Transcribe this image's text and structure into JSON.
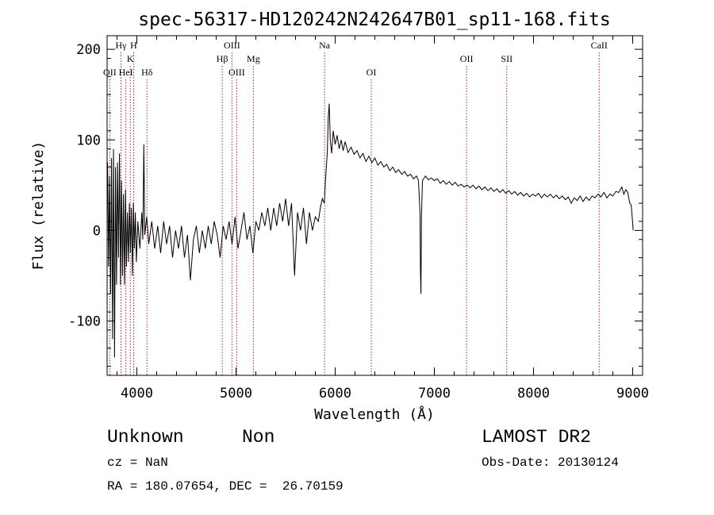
{
  "chart_data": {
    "type": "line",
    "title": "spec-56317-HD120242N242647B01_sp11-168.fits",
    "xlabel": "Wavelength (Å)",
    "ylabel": "Flux (relative)",
    "xlim": [
      3700,
      9100
    ],
    "ylim": [
      -160,
      215
    ],
    "xticks": [
      4000,
      5000,
      6000,
      7000,
      8000,
      9000
    ],
    "yticks": [
      -100,
      0,
      100,
      200
    ],
    "grid": false,
    "line_color": "#000000",
    "marker_color": "#b22222",
    "spectral_lines": [
      {
        "label": "Hγ",
        "wavelength": 3840,
        "row": 1
      },
      {
        "label": "H",
        "wavelength": 3968,
        "row": 1
      },
      {
        "label": "K",
        "wavelength": 3934,
        "row": 2
      },
      {
        "label": "OII",
        "wavelength": 3727,
        "row": 3
      },
      {
        "label": "HeI",
        "wavelength": 3889,
        "row": 3
      },
      {
        "label": "Hδ",
        "wavelength": 4102,
        "row": 3
      },
      {
        "label": "OIII",
        "wavelength": 4959,
        "row": 1
      },
      {
        "label": "Hβ",
        "wavelength": 4861,
        "row": 2
      },
      {
        "label": "Mg",
        "wavelength": 5175,
        "row": 2
      },
      {
        "label": "OIII",
        "wavelength": 5007,
        "row": 3
      },
      {
        "label": "Na",
        "wavelength": 5893,
        "row": 1
      },
      {
        "label": "OI",
        "wavelength": 6364,
        "row": 3
      },
      {
        "label": "OII",
        "wavelength": 7325,
        "row": 2
      },
      {
        "label": "SII",
        "wavelength": 7730,
        "row": 2
      },
      {
        "label": "CaII",
        "wavelength": 8662,
        "row": 1
      }
    ],
    "series": [
      {
        "points": [
          [
            3705,
            75
          ],
          [
            3715,
            -40
          ],
          [
            3725,
            60
          ],
          [
            3735,
            -70
          ],
          [
            3745,
            80
          ],
          [
            3755,
            -120
          ],
          [
            3765,
            90
          ],
          [
            3775,
            -140
          ],
          [
            3785,
            70
          ],
          [
            3795,
            -60
          ],
          [
            3805,
            75
          ],
          [
            3815,
            -30
          ],
          [
            3825,
            85
          ],
          [
            3835,
            -60
          ],
          [
            3845,
            55
          ],
          [
            3855,
            -50
          ],
          [
            3865,
            40
          ],
          [
            3875,
            -60
          ],
          [
            3885,
            45
          ],
          [
            3895,
            -40
          ],
          [
            3905,
            20
          ],
          [
            3915,
            -35
          ],
          [
            3925,
            30
          ],
          [
            3935,
            -25
          ],
          [
            3945,
            25
          ],
          [
            3955,
            -50
          ],
          [
            3965,
            30
          ],
          [
            3975,
            -20
          ],
          [
            3985,
            20
          ],
          [
            3995,
            -35
          ],
          [
            4010,
            10
          ],
          [
            4030,
            -20
          ],
          [
            4050,
            20
          ],
          [
            4060,
            -10
          ],
          [
            4070,
            95
          ],
          [
            4080,
            -5
          ],
          [
            4100,
            15
          ],
          [
            4120,
            -15
          ],
          [
            4150,
            10
          ],
          [
            4180,
            -20
          ],
          [
            4210,
            5
          ],
          [
            4240,
            -25
          ],
          [
            4270,
            10
          ],
          [
            4300,
            -15
          ],
          [
            4330,
            5
          ],
          [
            4360,
            -30
          ],
          [
            4390,
            0
          ],
          [
            4420,
            -20
          ],
          [
            4450,
            5
          ],
          [
            4480,
            -30
          ],
          [
            4510,
            -5
          ],
          [
            4540,
            -55
          ],
          [
            4570,
            -10
          ],
          [
            4600,
            5
          ],
          [
            4630,
            -25
          ],
          [
            4660,
            0
          ],
          [
            4690,
            -20
          ],
          [
            4720,
            5
          ],
          [
            4750,
            -15
          ],
          [
            4780,
            10
          ],
          [
            4810,
            -5
          ],
          [
            4840,
            -30
          ],
          [
            4870,
            5
          ],
          [
            4900,
            -10
          ],
          [
            4930,
            10
          ],
          [
            4960,
            -15
          ],
          [
            4990,
            15
          ],
          [
            5020,
            -20
          ],
          [
            5050,
            0
          ],
          [
            5080,
            20
          ],
          [
            5110,
            -10
          ],
          [
            5140,
            5
          ],
          [
            5170,
            -25
          ],
          [
            5200,
            10
          ],
          [
            5230,
            0
          ],
          [
            5260,
            20
          ],
          [
            5290,
            5
          ],
          [
            5320,
            25
          ],
          [
            5350,
            0
          ],
          [
            5380,
            25
          ],
          [
            5410,
            5
          ],
          [
            5440,
            30
          ],
          [
            5470,
            10
          ],
          [
            5500,
            35
          ],
          [
            5530,
            5
          ],
          [
            5560,
            30
          ],
          [
            5590,
            -50
          ],
          [
            5620,
            20
          ],
          [
            5650,
            0
          ],
          [
            5680,
            25
          ],
          [
            5710,
            -15
          ],
          [
            5740,
            20
          ],
          [
            5770,
            0
          ],
          [
            5800,
            15
          ],
          [
            5830,
            10
          ],
          [
            5850,
            25
          ],
          [
            5870,
            35
          ],
          [
            5890,
            30
          ],
          [
            5905,
            60
          ],
          [
            5920,
            85
          ],
          [
            5930,
            125
          ],
          [
            5940,
            140
          ],
          [
            5950,
            100
          ],
          [
            5965,
            85
          ],
          [
            5980,
            110
          ],
          [
            6000,
            95
          ],
          [
            6020,
            105
          ],
          [
            6040,
            90
          ],
          [
            6060,
            100
          ],
          [
            6080,
            88
          ],
          [
            6100,
            98
          ],
          [
            6130,
            86
          ],
          [
            6160,
            92
          ],
          [
            6190,
            84
          ],
          [
            6220,
            88
          ],
          [
            6250,
            80
          ],
          [
            6280,
            85
          ],
          [
            6310,
            76
          ],
          [
            6340,
            82
          ],
          [
            6370,
            75
          ],
          [
            6400,
            80
          ],
          [
            6430,
            72
          ],
          [
            6460,
            76
          ],
          [
            6490,
            70
          ],
          [
            6520,
            73
          ],
          [
            6550,
            66
          ],
          [
            6580,
            70
          ],
          [
            6610,
            64
          ],
          [
            6640,
            67
          ],
          [
            6670,
            62
          ],
          [
            6700,
            65
          ],
          [
            6730,
            60
          ],
          [
            6760,
            62
          ],
          [
            6790,
            57
          ],
          [
            6820,
            60
          ],
          [
            6840,
            55
          ],
          [
            6855,
            20
          ],
          [
            6860,
            -45
          ],
          [
            6865,
            -70
          ],
          [
            6870,
            15
          ],
          [
            6880,
            55
          ],
          [
            6910,
            60
          ],
          [
            6940,
            56
          ],
          [
            6970,
            58
          ],
          [
            7000,
            55
          ],
          [
            7030,
            57
          ],
          [
            7060,
            52
          ],
          [
            7090,
            55
          ],
          [
            7120,
            51
          ],
          [
            7150,
            54
          ],
          [
            7180,
            50
          ],
          [
            7210,
            53
          ],
          [
            7240,
            49
          ],
          [
            7270,
            51
          ],
          [
            7300,
            48
          ],
          [
            7330,
            50
          ],
          [
            7360,
            47
          ],
          [
            7390,
            50
          ],
          [
            7420,
            46
          ],
          [
            7450,
            49
          ],
          [
            7480,
            45
          ],
          [
            7510,
            48
          ],
          [
            7540,
            44
          ],
          [
            7570,
            47
          ],
          [
            7600,
            43
          ],
          [
            7630,
            46
          ],
          [
            7660,
            42
          ],
          [
            7690,
            45
          ],
          [
            7720,
            41
          ],
          [
            7750,
            44
          ],
          [
            7780,
            40
          ],
          [
            7810,
            43
          ],
          [
            7840,
            39
          ],
          [
            7870,
            42
          ],
          [
            7900,
            38
          ],
          [
            7930,
            41
          ],
          [
            7960,
            37
          ],
          [
            7990,
            40
          ],
          [
            8020,
            38
          ],
          [
            8050,
            41
          ],
          [
            8080,
            36
          ],
          [
            8110,
            40
          ],
          [
            8140,
            37
          ],
          [
            8170,
            40
          ],
          [
            8200,
            36
          ],
          [
            8230,
            39
          ],
          [
            8260,
            35
          ],
          [
            8290,
            38
          ],
          [
            8320,
            34
          ],
          [
            8350,
            37
          ],
          [
            8380,
            30
          ],
          [
            8410,
            36
          ],
          [
            8440,
            33
          ],
          [
            8470,
            38
          ],
          [
            8500,
            32
          ],
          [
            8530,
            37
          ],
          [
            8560,
            33
          ],
          [
            8590,
            38
          ],
          [
            8620,
            36
          ],
          [
            8650,
            40
          ],
          [
            8680,
            37
          ],
          [
            8710,
            42
          ],
          [
            8740,
            36
          ],
          [
            8770,
            40
          ],
          [
            8800,
            38
          ],
          [
            8830,
            43
          ],
          [
            8860,
            42
          ],
          [
            8890,
            48
          ],
          [
            8910,
            40
          ],
          [
            8930,
            45
          ],
          [
            8950,
            42
          ],
          [
            8970,
            30
          ],
          [
            8985,
            28
          ],
          [
            8995,
            15
          ],
          [
            9005,
            0
          ]
        ]
      }
    ]
  },
  "footer": {
    "object_class": "Unknown",
    "subclass": "Non",
    "cz": "cz = NaN",
    "coords": "RA = 180.07654, DEC =  26.70159",
    "survey": "LAMOST DR2",
    "obs_date": "Obs-Date: 20130124"
  }
}
